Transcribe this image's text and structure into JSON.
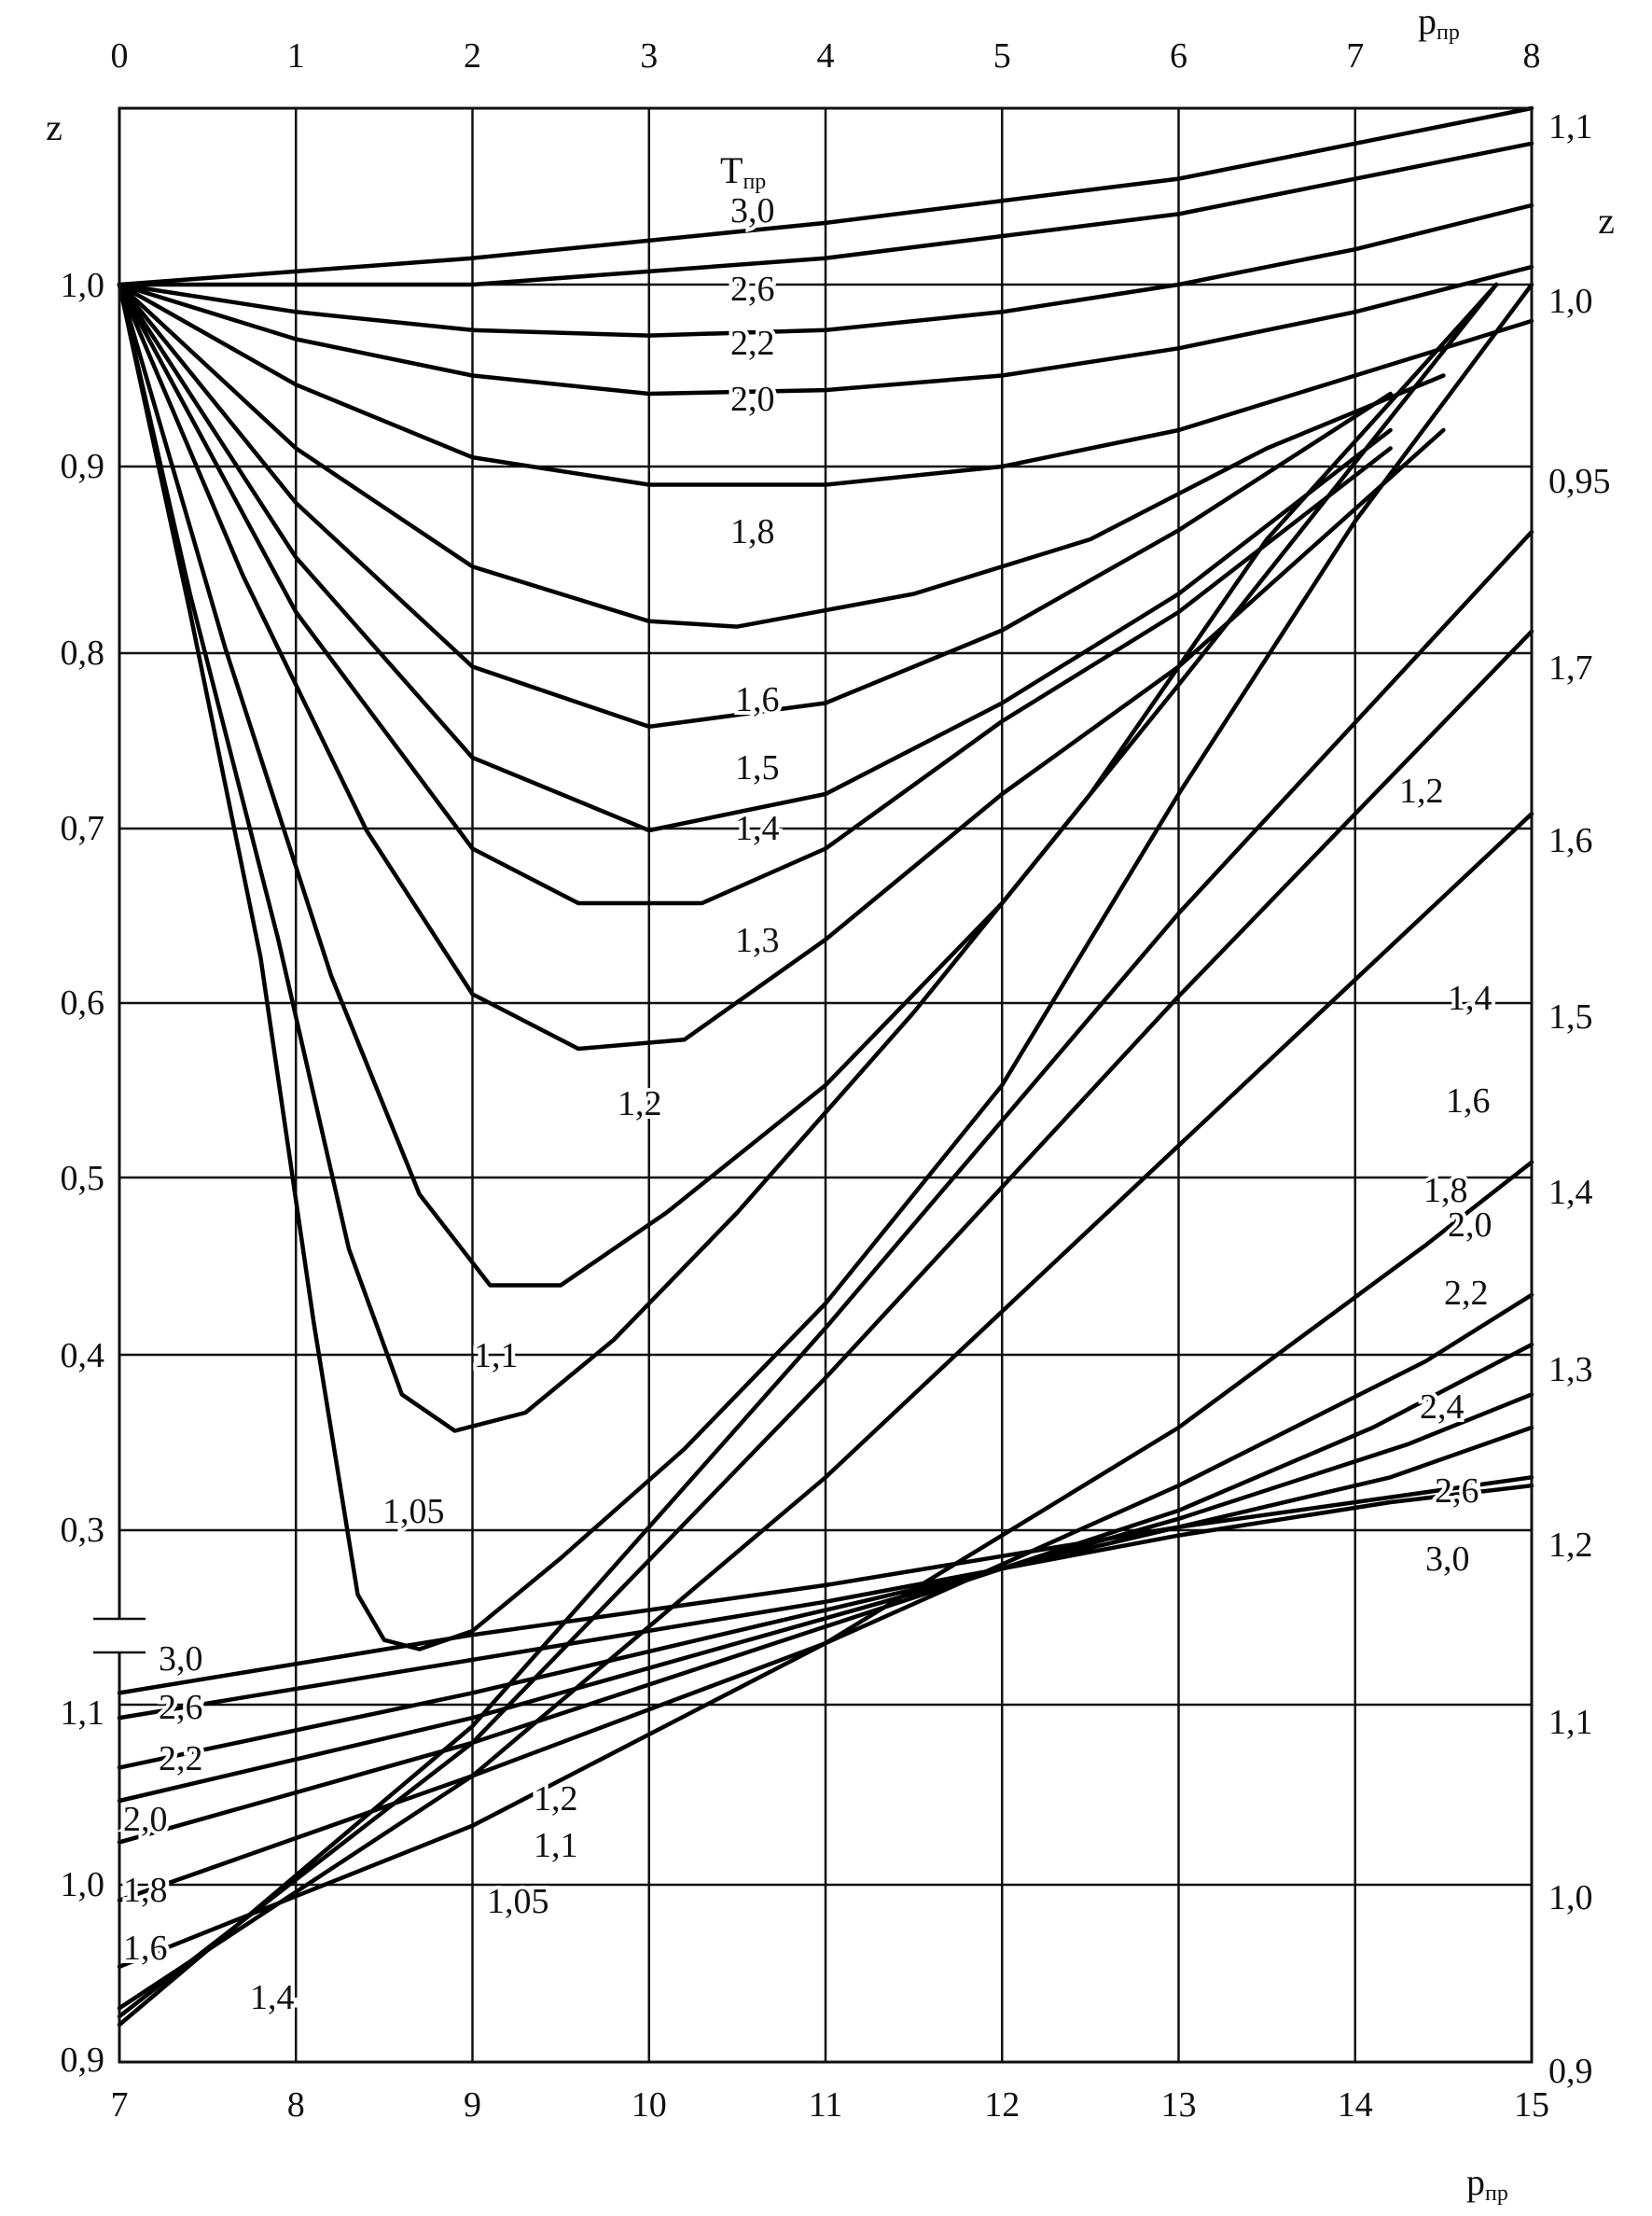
{
  "chart_data": {
    "type": "line",
    "grid": true,
    "top_axis": {
      "label": "p",
      "label_sub": "пр",
      "range": [
        0,
        8
      ],
      "ticks": [
        "0",
        "1",
        "2",
        "3",
        "4",
        "5",
        "6",
        "7",
        "8"
      ]
    },
    "bottom_axis": {
      "label": "p",
      "label_sub": "пр",
      "range": [
        7,
        15
      ],
      "ticks": [
        "7",
        "8",
        "9",
        "10",
        "11",
        "12",
        "13",
        "14",
        "15"
      ]
    },
    "upper_left_axis": {
      "label": "z",
      "range": [
        0.25,
        1.1
      ],
      "ticks": [
        "1,0",
        "0,9",
        "0,8",
        "0,7",
        "0,6",
        "0,5",
        "0,4",
        "0,3"
      ]
    },
    "upper_right_axis": {
      "label": "z",
      "range": [
        0.9,
        1.1
      ],
      "ticks": [
        "1,1",
        "1,0",
        "0,95"
      ]
    },
    "lower_left_axis": {
      "range": [
        0.9,
        1.15
      ],
      "ticks": [
        "1,1",
        "1,0",
        "0,9"
      ]
    },
    "lower_right_axis": {
      "range": [
        0.9,
        1.8
      ],
      "ticks": [
        "1,7",
        "1,6",
        "1,5",
        "1,4",
        "1,3",
        "1,2",
        "1,1",
        "1,0",
        "0,9"
      ]
    },
    "parameter_label": "T",
    "parameter_label_sub": "пр",
    "series_upper": [
      {
        "name": "3,0",
        "x": [
          0,
          2,
          4,
          6,
          8
        ],
        "y": [
          1.0,
          1.015,
          1.035,
          1.06,
          1.1
        ]
      },
      {
        "name": "2,6",
        "x": [
          0,
          2,
          4,
          6,
          8
        ],
        "y": [
          1.0,
          1.0,
          1.015,
          1.04,
          1.08
        ]
      },
      {
        "name": "2,2",
        "x": [
          0,
          1,
          2,
          3,
          4,
          5,
          6,
          7,
          8
        ],
        "y": [
          1.0,
          0.985,
          0.975,
          0.972,
          0.975,
          0.985,
          1.0,
          1.02,
          1.045
        ]
      },
      {
        "name": "2,0",
        "x": [
          0,
          1,
          2,
          3,
          4,
          5,
          6,
          7,
          8
        ],
        "y": [
          1.0,
          0.97,
          0.95,
          0.94,
          0.942,
          0.95,
          0.965,
          0.985,
          1.01
        ]
      },
      {
        "name": "1,8",
        "x": [
          0,
          1,
          2,
          3,
          4,
          5,
          6,
          7,
          8
        ],
        "y": [
          1.0,
          0.945,
          0.905,
          0.89,
          0.89,
          0.9,
          0.92,
          0.95,
          0.98
        ]
      },
      {
        "name": "1,6",
        "x": [
          0,
          1,
          2,
          3,
          3.5,
          4.5,
          5.5,
          6.5,
          7.5
        ],
        "y": [
          1.0,
          0.91,
          0.845,
          0.815,
          0.812,
          0.83,
          0.86,
          0.91,
          0.95
        ]
      },
      {
        "name": "1,5",
        "x": [
          0,
          1,
          2,
          3,
          4,
          5,
          6,
          7.2
        ],
        "y": [
          1.0,
          0.88,
          0.79,
          0.757,
          0.77,
          0.81,
          0.865,
          0.94
        ]
      },
      {
        "name": "1,4",
        "x": [
          0,
          1,
          2,
          3,
          4,
          5,
          6,
          7.2
        ],
        "y": [
          1.0,
          0.85,
          0.74,
          0.7,
          0.72,
          0.77,
          0.83,
          0.92
        ]
      },
      {
        "name": "1,3",
        "x": [
          0,
          1,
          2,
          2.6,
          3.3,
          4,
          5,
          6,
          7.2
        ],
        "y": [
          1.0,
          0.82,
          0.69,
          0.66,
          0.66,
          0.69,
          0.76,
          0.82,
          0.91
        ]
      },
      {
        "name": "1,2",
        "x": [
          0,
          0.7,
          1.4,
          2,
          2.6,
          3.2,
          4,
          5,
          6,
          7.5
        ],
        "y": [
          1.0,
          0.84,
          0.7,
          0.61,
          0.58,
          0.585,
          0.64,
          0.72,
          0.79,
          0.92
        ]
      },
      {
        "name": "1,1",
        "x": [
          0,
          0.6,
          1.2,
          1.7,
          2.1,
          2.5,
          3.1,
          4,
          5,
          6,
          7.8
        ],
        "y": [
          1.0,
          0.8,
          0.62,
          0.5,
          0.45,
          0.45,
          0.49,
          0.56,
          0.66,
          0.78,
          1.0
        ]
      },
      {
        "name": "1,05",
        "x": [
          0,
          0.4,
          0.9,
          1.3,
          1.6,
          1.9,
          2.3,
          2.8,
          3.5,
          4.5,
          5.5,
          6.5,
          7.8
        ],
        "y": [
          1.0,
          0.83,
          0.64,
          0.47,
          0.39,
          0.37,
          0.38,
          0.42,
          0.49,
          0.6,
          0.72,
          0.86,
          1.0
        ]
      },
      {
        "name": "",
        "x": [
          0,
          0.4,
          0.8,
          1.1,
          1.35,
          1.5,
          1.7,
          2.0,
          2.5,
          3.2,
          4,
          5,
          6,
          7,
          8
        ],
        "y": [
          1.0,
          0.82,
          0.63,
          0.43,
          0.28,
          0.255,
          0.25,
          0.26,
          0.3,
          0.36,
          0.44,
          0.56,
          0.72,
          0.87,
          1.0
        ]
      }
    ],
    "series_lower": [
      {
        "name": "3,0",
        "x": [
          7,
          9,
          11,
          13,
          15
        ],
        "y": [
          1.1,
          1.135,
          1.165,
          1.2,
          1.23
        ]
      },
      {
        "name": "2,6",
        "x": [
          7,
          9,
          11,
          13,
          14.2,
          15
        ],
        "y": [
          1.085,
          1.12,
          1.155,
          1.195,
          1.215,
          1.225
        ]
      },
      {
        "name": "2,2",
        "x": [
          7,
          9,
          11,
          13,
          14.2,
          15
        ],
        "y": [
          1.055,
          1.1,
          1.15,
          1.2,
          1.23,
          1.26
        ]
      },
      {
        "name": "2,0",
        "x": [
          7,
          9,
          11,
          13,
          14.3,
          15
        ],
        "y": [
          1.035,
          1.085,
          1.145,
          1.205,
          1.25,
          1.28
        ]
      },
      {
        "name": "1,8",
        "x": [
          7,
          9,
          11,
          13,
          14.1,
          15
        ],
        "y": [
          1.01,
          1.07,
          1.14,
          1.21,
          1.26,
          1.31
        ]
      },
      {
        "name": "1,6",
        "x": [
          7,
          9,
          11,
          13,
          14.4,
          15
        ],
        "y": [
          0.975,
          1.05,
          1.13,
          1.225,
          1.3,
          1.34
        ]
      },
      {
        "name": "1,4",
        "x": [
          7,
          9,
          11,
          13,
          14.4,
          15
        ],
        "y": [
          0.935,
          1.02,
          1.13,
          1.26,
          1.37,
          1.42
        ]
      },
      {
        "name": "1,2",
        "x": [
          7,
          9,
          11,
          13,
          15
        ],
        "y": [
          0.91,
          1.05,
          1.23,
          1.43,
          1.63
        ]
      },
      {
        "name": "1,1",
        "x": [
          7,
          9,
          11,
          13,
          15
        ],
        "y": [
          0.905,
          1.07,
          1.29,
          1.52,
          1.74
        ]
      },
      {
        "name": "1,05",
        "x": [
          7,
          9,
          11,
          13,
          15
        ],
        "y": [
          0.9,
          1.08,
          1.32,
          1.57,
          1.8
        ]
      }
    ],
    "curve_labels": [
      {
        "text": "3,0"
      },
      {
        "text": "2,6"
      },
      {
        "text": "2,2"
      },
      {
        "text": "2,0"
      },
      {
        "text": "1,8"
      },
      {
        "text": "1,6"
      },
      {
        "text": "1,5"
      },
      {
        "text": "1,4"
      },
      {
        "text": "1,3"
      },
      {
        "text": "1,2"
      },
      {
        "text": "1,1"
      },
      {
        "text": "1,05"
      },
      {
        "text": "1,2"
      },
      {
        "text": "1,4"
      },
      {
        "text": "1,6"
      },
      {
        "text": "1,8"
      },
      {
        "text": "2,0"
      },
      {
        "text": "2,2"
      },
      {
        "text": "2,4"
      },
      {
        "text": "2,6"
      },
      {
        "text": "3,0"
      },
      {
        "text": "3,0"
      },
      {
        "text": "2,6"
      },
      {
        "text": "2,2"
      },
      {
        "text": "2,0"
      },
      {
        "text": "1,8"
      },
      {
        "text": "1,6"
      },
      {
        "text": "1,4"
      },
      {
        "text": "1,2"
      },
      {
        "text": "1,1"
      },
      {
        "text": "1,05"
      }
    ]
  }
}
